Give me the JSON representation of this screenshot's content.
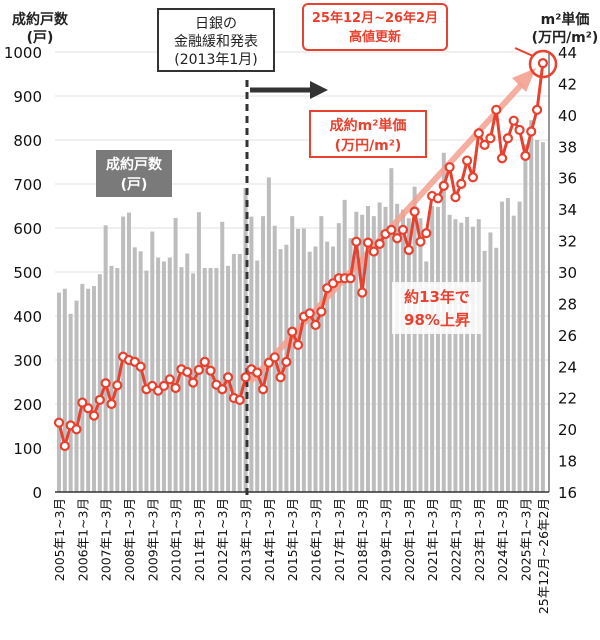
{
  "chart_data": {
    "type": "bar+line",
    "left_axis": {
      "title_line1": "成約戸数",
      "title_line2": "(戸)",
      "ylim": [
        0,
        1000
      ],
      "ticks": [
        0,
        100,
        200,
        300,
        400,
        500,
        600,
        700,
        800,
        900,
        1000
      ]
    },
    "right_axis": {
      "title_line1": "m²単価",
      "title_line2": "(万円/m²)",
      "ylim": [
        16,
        44
      ],
      "ticks": [
        16,
        18,
        20,
        22,
        24,
        26,
        28,
        30,
        32,
        34,
        36,
        38,
        40,
        42,
        44
      ]
    },
    "x_tick_labels": [
      "2005年1~3月",
      "2006年1~3月",
      "2007年1~3月",
      "2008年1~3月",
      "2009年1~3月",
      "2010年1~3月",
      "2011年1~3月",
      "2012年1~3月",
      "2013年1~3月",
      "2014年1~3月",
      "2015年1~3月",
      "2016年1~3月",
      "2017年1~3月",
      "2018年1~3月",
      "2019年1~3月",
      "2020年1~3月",
      "2021年1~3月",
      "2022年1~3月",
      "2023年1~3月",
      "2024年1~3月",
      "2025年1~3月",
      "25年12月~26年2月"
    ],
    "grid": true,
    "series": [
      {
        "name": "成約戸数(戸)",
        "type": "bar",
        "axis": "left",
        "color": "#bdbdbd",
        "values": [
          453,
          462,
          405,
          435,
          473,
          462,
          468,
          495,
          606,
          514,
          509,
          626,
          635,
          556,
          547,
          503,
          592,
          533,
          524,
          533,
          623,
          511,
          542,
          497,
          636,
          509,
          509,
          509,
          614,
          514,
          541,
          541,
          691,
          626,
          526,
          627,
          715,
          605,
          552,
          562,
          627,
          598,
          599,
          546,
          558,
          627,
          569,
          558,
          611,
          664,
          577,
          637,
          630,
          650,
          627,
          658,
          648,
          736,
          655,
          642,
          622,
          694,
          622,
          524,
          650,
          648,
          771,
          630,
          620,
          612,
          625,
          603,
          620,
          548,
          590,
          555,
          660,
          668,
          628,
          660,
          790,
          845,
          800,
          795
        ]
      },
      {
        "name": "成約m²単価(万円/m²)",
        "type": "line",
        "axis": "right",
        "color": "#e8412f",
        "values": [
          20.41,
          18.93,
          20.24,
          19.99,
          21.69,
          21.33,
          20.86,
          21.86,
          22.92,
          21.6,
          22.79,
          24.61,
          24.4,
          24.28,
          23.98,
          22.54,
          22.75,
          22.45,
          22.75,
          23.17,
          22.62,
          23.81,
          23.64,
          22.96,
          23.77,
          24.28,
          23.72,
          22.83,
          22.54,
          23.3,
          21.98,
          21.86,
          23.3,
          23.81,
          23.6,
          22.54,
          24.23,
          24.57,
          23.3,
          24.28,
          26.2,
          25.36,
          27.16,
          27.37,
          26.63,
          27.48,
          28.97,
          29.28,
          29.6,
          29.6,
          29.6,
          31.93,
          28.69,
          31.87,
          31.3,
          31.79,
          32.42,
          32.68,
          32.15,
          32.68,
          31.4,
          33.84,
          31.93,
          32.47,
          34.84,
          34.69,
          35.48,
          36.67,
          34.76,
          35.61,
          37.09,
          36.03,
          38.83,
          38.09,
          38.51,
          40.32,
          37.24,
          38.51,
          39.63,
          39.04,
          37.39,
          38.94,
          40.32,
          43.29
        ]
      }
    ],
    "annotations": {
      "boj_line1": "日銀の",
      "boj_line2": "金融緩和発表",
      "boj_line3": "(2013年1月)",
      "high_line1": "25年12月~26年2月",
      "high_line2": "高値更新",
      "price_label_line1": "成約m²単価",
      "price_label_line2": "(万円/m²)",
      "count_label_line1": "成約戸数",
      "count_label_line2": "(戸)",
      "rise_line1": "約13年で",
      "rise_line2": "98%上昇"
    },
    "colors": {
      "accent": "#e8412f",
      "bar": "#bdbdbd",
      "dark": "#333333",
      "arrow": "#f4a08f"
    }
  }
}
